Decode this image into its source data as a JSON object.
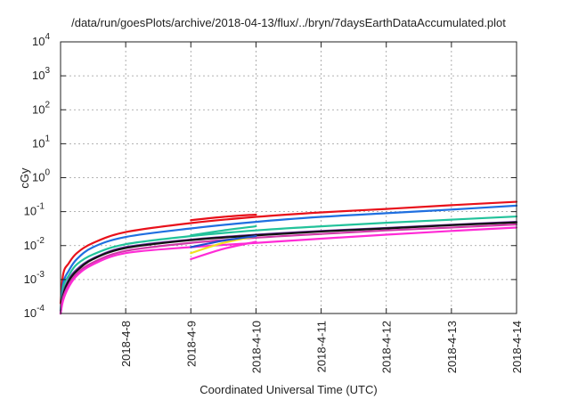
{
  "chart_data": {
    "type": "line",
    "title": "/data/run/goesPlots/archive/2018-04-13/flux/../bryn/7daysEarthDataAccumulated.plot",
    "xlabel": "Coordinated Universal Time (UTC)",
    "ylabel": "cGy",
    "yscale": "log",
    "ylim": [
      0.0001,
      10000
    ],
    "y_ticks": [
      {
        "base": "10",
        "exp": "-4",
        "value": 0.0001
      },
      {
        "base": "10",
        "exp": "-3",
        "value": 0.001
      },
      {
        "base": "10",
        "exp": "-2",
        "value": 0.01
      },
      {
        "base": "10",
        "exp": "-1",
        "value": 0.1
      },
      {
        "base": "10",
        "exp": "0",
        "value": 1
      },
      {
        "base": "10",
        "exp": "1",
        "value": 10
      },
      {
        "base": "10",
        "exp": "2",
        "value": 100
      },
      {
        "base": "10",
        "exp": "3",
        "value": 1000
      },
      {
        "base": "10",
        "exp": "4",
        "value": 10000
      }
    ],
    "xlim": [
      "2018-04-07 00:00",
      "2018-04-14 00:00"
    ],
    "x_ticks": [
      {
        "label": "2018-4-8",
        "value": "2018-04-08"
      },
      {
        "label": "2018-4-9",
        "value": "2018-04-09"
      },
      {
        "label": "2018-4-10",
        "value": "2018-04-10"
      },
      {
        "label": "2018-4-11",
        "value": "2018-04-11"
      },
      {
        "label": "2018-4-12",
        "value": "2018-04-12"
      },
      {
        "label": "2018-4-13",
        "value": "2018-04-13"
      },
      {
        "label": "2018-4-14",
        "value": "2018-04-14"
      }
    ],
    "grid": true,
    "series": [
      {
        "color": "#e8101a",
        "x": [
          "2018-04-07 00:00",
          "2018-04-07 01:00",
          "2018-04-07 03:00",
          "2018-04-07 06:00",
          "2018-04-07 12:00",
          "2018-04-08 00:00",
          "2018-04-09 00:00",
          "2018-04-10 00:00",
          "2018-04-11 00:00",
          "2018-04-12 00:00",
          "2018-04-13 00:00",
          "2018-04-14 00:00"
        ],
        "y": [
          0.0002,
          0.0015,
          0.003,
          0.006,
          0.012,
          0.025,
          0.046,
          0.07,
          0.095,
          0.12,
          0.155,
          0.195
        ]
      },
      {
        "color": "#1f6fe0",
        "x": [
          "2018-04-07 00:00",
          "2018-04-07 01:00",
          "2018-04-07 03:00",
          "2018-04-07 06:00",
          "2018-04-07 12:00",
          "2018-04-08 00:00",
          "2018-04-09 00:00",
          "2018-04-10 00:00",
          "2018-04-11 00:00",
          "2018-04-12 00:00",
          "2018-04-13 00:00",
          "2018-04-14 00:00"
        ],
        "y": [
          0.00012,
          0.0008,
          0.0018,
          0.004,
          0.009,
          0.018,
          0.032,
          0.05,
          0.07,
          0.09,
          0.115,
          0.15
        ]
      },
      {
        "color": "#22c29a",
        "x": [
          "2018-04-07 00:00",
          "2018-04-07 01:00",
          "2018-04-07 03:00",
          "2018-04-07 06:00",
          "2018-04-07 12:00",
          "2018-04-08 00:00",
          "2018-04-09 00:00",
          "2018-04-10 00:00",
          "2018-04-11 00:00",
          "2018-04-12 00:00",
          "2018-04-13 00:00",
          "2018-04-14 00:00"
        ],
        "y": [
          0.0001,
          0.0006,
          0.0013,
          0.0028,
          0.0055,
          0.011,
          0.019,
          0.028,
          0.037,
          0.047,
          0.058,
          0.072
        ]
      },
      {
        "color": "#6a2ca0",
        "x": [
          "2018-04-07 00:00",
          "2018-04-07 01:00",
          "2018-04-07 03:00",
          "2018-04-07 06:00",
          "2018-04-07 12:00",
          "2018-04-08 00:00",
          "2018-04-09 00:00",
          "2018-04-10 00:00",
          "2018-04-11 00:00",
          "2018-04-12 00:00",
          "2018-04-13 00:00",
          "2018-04-14 00:00"
        ],
        "y": [
          0.0001,
          0.0004,
          0.001,
          0.002,
          0.0042,
          0.009,
          0.015,
          0.021,
          0.027,
          0.033,
          0.041,
          0.05
        ]
      },
      {
        "color": "#111111",
        "x": [
          "2018-04-07 00:00",
          "2018-04-07 01:00",
          "2018-04-07 03:00",
          "2018-04-07 06:00",
          "2018-04-07 12:00",
          "2018-04-08 00:00",
          "2018-04-09 00:00",
          "2018-04-10 00:00",
          "2018-04-11 00:00",
          "2018-04-12 00:00",
          "2018-04-13 00:00",
          "2018-04-14 00:00"
        ],
        "y": [
          0.0001,
          0.00035,
          0.0009,
          0.0018,
          0.004,
          0.0085,
          0.0145,
          0.02,
          0.026,
          0.032,
          0.04,
          0.048
        ]
      },
      {
        "color": "#d03aa8",
        "x": [
          "2018-04-07 00:00",
          "2018-04-07 01:00",
          "2018-04-07 03:00",
          "2018-04-07 06:00",
          "2018-04-07 12:00",
          "2018-04-08 00:00",
          "2018-04-09 00:00",
          "2018-04-10 00:00",
          "2018-04-11 00:00",
          "2018-04-12 00:00",
          "2018-04-13 00:00",
          "2018-04-14 00:00"
        ],
        "y": [
          0.0001,
          0.0003,
          0.0007,
          0.0015,
          0.0032,
          0.007,
          0.012,
          0.017,
          0.022,
          0.028,
          0.034,
          0.042
        ]
      },
      {
        "color": "#ff2bd6",
        "x": [
          "2018-04-07 00:00",
          "2018-04-07 01:00",
          "2018-04-07 03:00",
          "2018-04-07 06:00",
          "2018-04-07 12:00",
          "2018-04-08 00:00",
          "2018-04-09 00:00",
          "2018-04-10 00:00",
          "2018-04-11 00:00",
          "2018-04-12 00:00",
          "2018-04-13 00:00",
          "2018-04-14 00:00"
        ],
        "y": [
          0.0001,
          0.00025,
          0.0006,
          0.0013,
          0.0028,
          0.006,
          0.009,
          0.012,
          0.016,
          0.021,
          0.027,
          0.034
        ]
      },
      {
        "color": "#f0e020",
        "x": [
          "2018-04-09 00:00",
          "2018-04-09 12:00",
          "2018-04-10 00:00"
        ],
        "y": [
          0.006,
          0.012,
          0.019
        ]
      },
      {
        "color": "#ff2bd6",
        "x": [
          "2018-04-09 00:00",
          "2018-04-09 12:00",
          "2018-04-10 00:00"
        ],
        "y": [
          0.004,
          0.008,
          0.013
        ]
      },
      {
        "color": "#1f4fd0",
        "x": [
          "2018-04-09 00:00",
          "2018-04-09 12:00",
          "2018-04-10 00:00"
        ],
        "y": [
          0.009,
          0.014,
          0.019
        ]
      },
      {
        "color": "#e8101a",
        "x": [
          "2018-04-09 00:00",
          "2018-04-09 12:00",
          "2018-04-10 00:00"
        ],
        "y": [
          0.056,
          0.07,
          0.082
        ]
      },
      {
        "color": "#22c29a",
        "x": [
          "2018-04-09 00:00",
          "2018-04-09 12:00",
          "2018-04-10 00:00"
        ],
        "y": [
          0.02,
          0.028,
          0.037
        ]
      }
    ]
  }
}
